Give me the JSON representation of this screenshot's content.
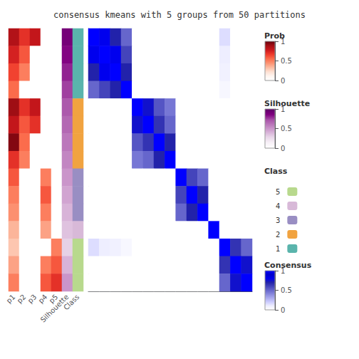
{
  "chart_data": {
    "type": "heatmap",
    "title": "consensus kmeans with 5 groups from 50 partitions",
    "tick_labels": false,
    "grid": false,
    "consensus": {
      "scale": "Consensus",
      "values": [
        [
          1.0,
          0.8,
          0.7,
          0.5,
          0.0,
          0.0,
          0.0,
          0.0,
          0.0,
          0.0,
          0.0,
          0.0,
          0.15,
          0.0,
          0.0
        ],
        [
          0.8,
          1.0,
          0.8,
          0.6,
          0.0,
          0.0,
          0.0,
          0.0,
          0.0,
          0.0,
          0.0,
          0.0,
          0.1,
          0.0,
          0.0
        ],
        [
          0.7,
          0.8,
          1.0,
          0.7,
          0.0,
          0.0,
          0.0,
          0.0,
          0.0,
          0.0,
          0.0,
          0.0,
          0.08,
          0.0,
          0.0
        ],
        [
          0.5,
          0.6,
          0.7,
          1.0,
          0.0,
          0.0,
          0.0,
          0.0,
          0.0,
          0.0,
          0.0,
          0.0,
          0.05,
          0.0,
          0.0
        ],
        [
          0.0,
          0.0,
          0.0,
          0.0,
          1.0,
          0.75,
          0.55,
          0.45,
          0.0,
          0.0,
          0.0,
          0.0,
          0.0,
          0.0,
          0.0
        ],
        [
          0.0,
          0.0,
          0.0,
          0.0,
          0.75,
          1.0,
          0.65,
          0.5,
          0.0,
          0.0,
          0.0,
          0.0,
          0.0,
          0.0,
          0.0
        ],
        [
          0.0,
          0.0,
          0.0,
          0.0,
          0.55,
          0.65,
          1.0,
          0.7,
          0.0,
          0.0,
          0.0,
          0.0,
          0.0,
          0.0,
          0.0
        ],
        [
          0.0,
          0.0,
          0.0,
          0.0,
          0.45,
          0.5,
          0.7,
          1.0,
          0.0,
          0.0,
          0.0,
          0.0,
          0.0,
          0.0,
          0.0
        ],
        [
          0.0,
          0.0,
          0.0,
          0.0,
          0.0,
          0.0,
          0.0,
          0.0,
          1.0,
          0.6,
          0.5,
          0.0,
          0.0,
          0.0,
          0.0
        ],
        [
          0.0,
          0.0,
          0.0,
          0.0,
          0.0,
          0.0,
          0.0,
          0.0,
          0.6,
          1.0,
          0.7,
          0.0,
          0.0,
          0.0,
          0.0
        ],
        [
          0.0,
          0.0,
          0.0,
          0.0,
          0.0,
          0.0,
          0.0,
          0.0,
          0.5,
          0.7,
          1.0,
          0.0,
          0.0,
          0.0,
          0.0
        ],
        [
          0.0,
          0.0,
          0.0,
          0.0,
          0.0,
          0.0,
          0.0,
          0.0,
          0.0,
          0.0,
          0.0,
          1.0,
          0.0,
          0.0,
          0.0
        ],
        [
          0.15,
          0.1,
          0.08,
          0.05,
          0.0,
          0.0,
          0.0,
          0.0,
          0.0,
          0.0,
          0.0,
          0.0,
          1.0,
          0.65,
          0.5
        ],
        [
          0.0,
          0.0,
          0.0,
          0.0,
          0.0,
          0.0,
          0.0,
          0.0,
          0.0,
          0.0,
          0.0,
          0.0,
          0.65,
          1.0,
          0.75
        ],
        [
          0.0,
          0.0,
          0.0,
          0.0,
          0.0,
          0.0,
          0.0,
          0.0,
          0.0,
          0.0,
          0.0,
          0.0,
          0.5,
          0.75,
          1.0
        ]
      ]
    },
    "annotation_columns": [
      {
        "name": "p1",
        "scale": "Prob",
        "values": [
          0.85,
          0.75,
          0.65,
          0.55,
          0.9,
          0.8,
          0.95,
          0.7,
          0.6,
          0.5,
          0.45,
          0.35,
          0.3,
          0.4,
          0.5
        ]
      },
      {
        "name": "p2",
        "scale": "Prob",
        "values": [
          0.7,
          0.6,
          0.5,
          0.0,
          0.7,
          0.6,
          0.55,
          0.5,
          0.0,
          0.0,
          0.0,
          0.0,
          0.0,
          0.0,
          0.0
        ]
      },
      {
        "name": "p3",
        "scale": "Prob",
        "values": [
          0.8,
          0.0,
          0.0,
          0.0,
          0.8,
          0.7,
          0.0,
          0.0,
          0.0,
          0.0,
          0.0,
          0.0,
          0.0,
          0.0,
          0.0
        ]
      },
      {
        "name": "p4",
        "scale": "Prob",
        "values": [
          0.0,
          0.0,
          0.0,
          0.0,
          0.0,
          0.0,
          0.0,
          0.0,
          0.5,
          0.6,
          0.5,
          0.4,
          0.0,
          0.5,
          0.6
        ]
      },
      {
        "name": "p5",
        "scale": "Prob",
        "values": [
          0.0,
          0.0,
          0.0,
          0.0,
          0.0,
          0.0,
          0.0,
          0.0,
          0.0,
          0.0,
          0.0,
          0.0,
          0.5,
          0.6,
          0.7
        ]
      },
      {
        "name": "Silhouette",
        "scale": "Silhouette",
        "values": [
          0.9,
          0.85,
          0.8,
          0.75,
          0.7,
          0.65,
          0.6,
          0.55,
          0.5,
          0.45,
          0.4,
          0.35,
          0.3,
          0.4,
          0.5
        ]
      },
      {
        "name": "Class",
        "scale": "Class",
        "values": [
          "1",
          "1",
          "1",
          "1",
          "2",
          "2",
          "2",
          "2",
          "3",
          "3",
          "3",
          "4",
          "5",
          "5",
          "5"
        ]
      }
    ],
    "color_bars": [
      {
        "name": "Prob",
        "range": [
          0,
          1
        ],
        "ticks": [
          0,
          0.5,
          1
        ]
      },
      {
        "name": "Silhouette",
        "range": [
          0,
          1
        ],
        "ticks": [
          0,
          0.5,
          1
        ]
      },
      {
        "name": "Consensus",
        "range": [
          0,
          1
        ],
        "ticks": [
          0,
          0.5,
          1
        ]
      }
    ],
    "class_legend": {
      "name": "Class",
      "categories": [
        "1",
        "2",
        "3",
        "4",
        "5"
      ],
      "colors": [
        "#5ab4ac",
        "#f1a340",
        "#998ec3",
        "#d8b9d8",
        "#b8d98d"
      ]
    }
  }
}
